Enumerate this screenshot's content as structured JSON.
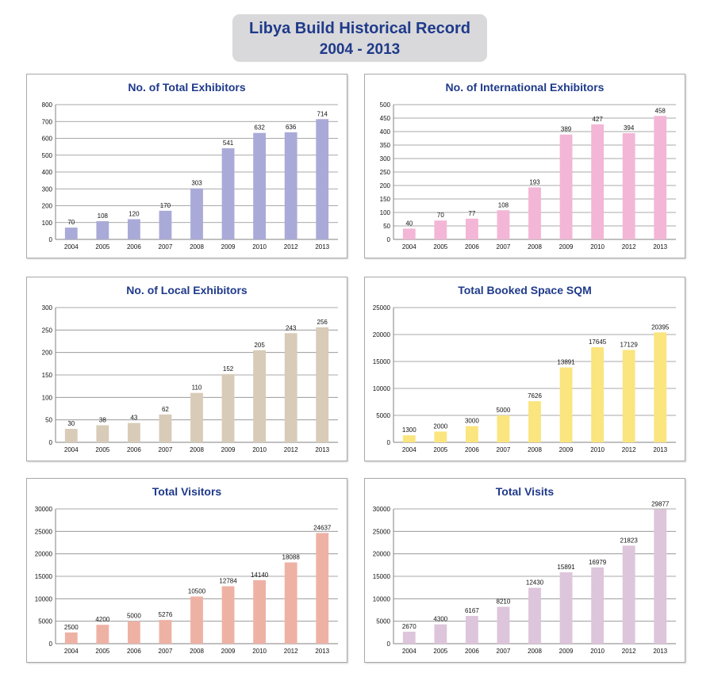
{
  "header": {
    "title_line1": "Libya Build Historical Record",
    "title_line2": "2004 - 2013"
  },
  "chart_data": [
    {
      "type": "bar",
      "title": "No. of Total Exhibitors",
      "color": "#aaaad8",
      "categories": [
        "2004",
        "2005",
        "2006",
        "2007",
        "2008",
        "2009",
        "2010",
        "2012",
        "2013"
      ],
      "values": [
        70,
        108,
        120,
        170,
        303,
        541,
        632,
        636,
        714
      ],
      "ylim": [
        0,
        800
      ],
      "ystep": 100,
      "grid": true
    },
    {
      "type": "bar",
      "title": "No. of International Exhibitors",
      "color": "#f3b6d6",
      "categories": [
        "2004",
        "2005",
        "2006",
        "2007",
        "2008",
        "2009",
        "2010",
        "2012",
        "2013"
      ],
      "values": [
        40,
        70,
        77,
        108,
        193,
        389,
        427,
        394,
        458
      ],
      "ylim": [
        0,
        500
      ],
      "ystep": 50,
      "grid": true
    },
    {
      "type": "bar",
      "title": "No. of Local Exhibitors",
      "color": "#d8cbb8",
      "categories": [
        "2004",
        "2005",
        "2006",
        "2007",
        "2008",
        "2009",
        "2010",
        "2012",
        "2013"
      ],
      "values": [
        30,
        38,
        43,
        62,
        110,
        152,
        205,
        243,
        256
      ],
      "ylim": [
        0,
        300
      ],
      "ystep": 50,
      "grid": true
    },
    {
      "type": "bar",
      "title": "Total Booked Space SQM",
      "color": "#fae57e",
      "categories": [
        "2004",
        "2005",
        "2006",
        "2007",
        "2008",
        "2009",
        "2010",
        "2012",
        "2013"
      ],
      "values": [
        1300,
        2000,
        3000,
        5000,
        7626,
        13891,
        17645,
        17129,
        20395
      ],
      "ylim": [
        0,
        25000
      ],
      "ystep": 5000,
      "grid": true
    },
    {
      "type": "bar",
      "title": "Total Visitors",
      "color": "#eeb2a5",
      "categories": [
        "2004",
        "2005",
        "2006",
        "2007",
        "2008",
        "2009",
        "2010",
        "2012",
        "2013"
      ],
      "values": [
        2500,
        4200,
        5000,
        5276,
        10500,
        12784,
        14140,
        18088,
        24637
      ],
      "ylim": [
        0,
        30000
      ],
      "ystep": 5000,
      "grid": true
    },
    {
      "type": "bar",
      "title": "Total Visits",
      "color": "#ddc5db",
      "categories": [
        "2004",
        "2005",
        "2006",
        "2007",
        "2008",
        "2009",
        "2010",
        "2012",
        "2013"
      ],
      "values": [
        2670,
        4300,
        6167,
        8210,
        12430,
        15891,
        16979,
        21823,
        29877
      ],
      "ylim": [
        0,
        30000
      ],
      "ystep": 5000,
      "grid": true
    }
  ]
}
